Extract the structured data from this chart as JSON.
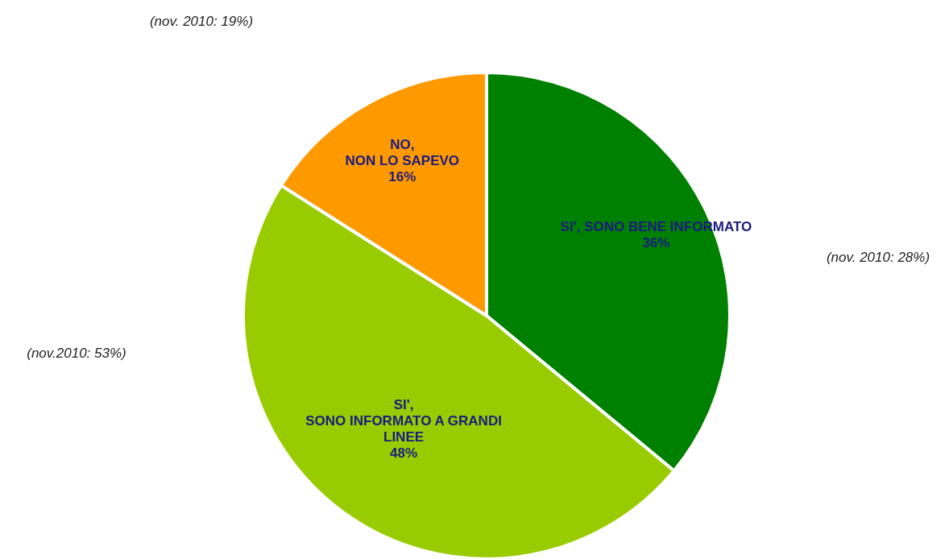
{
  "chart_data": {
    "type": "pie",
    "categories": [
      "SI', SONO BENE INFORMATO",
      "SI',\nSONO INFORMATO A GRANDI\nLINEE",
      "NO,\nNON LO SAPEVO"
    ],
    "values": [
      36,
      48,
      16
    ],
    "colors": [
      "#008000",
      "#99cc00",
      "#ff9900"
    ],
    "data_labels": true,
    "value_labels": [
      "36%",
      "48%",
      "16%"
    ],
    "annotations": [
      "(nov. 2010: 28%)",
      "(nov.2010: 53%)",
      "(nov. 2010: 19%)"
    ]
  }
}
